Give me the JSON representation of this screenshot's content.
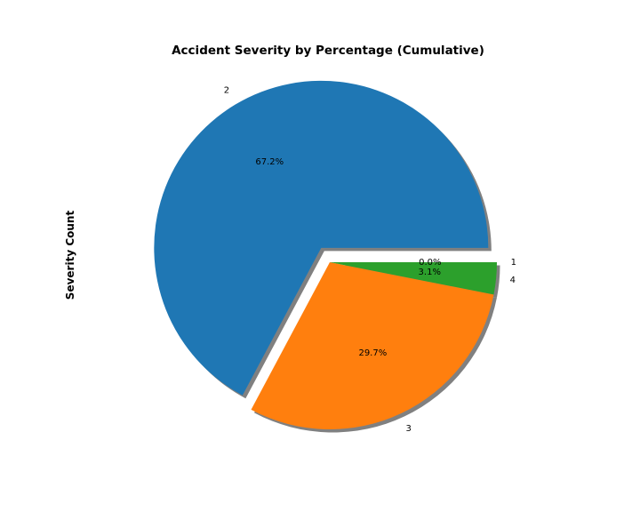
{
  "chart_data": {
    "type": "pie",
    "title": "Accident Severity by Percentage (Cumulative)",
    "ylabel": "Severity Count",
    "slices": [
      {
        "label": "1",
        "percent": 0.0,
        "pct_label": "0.0%",
        "color": "#d62728",
        "exploded": false
      },
      {
        "label": "2",
        "percent": 67.2,
        "pct_label": "67.2%",
        "color": "#1f77b4",
        "exploded": true
      },
      {
        "label": "3",
        "percent": 29.7,
        "pct_label": "29.7%",
        "color": "#ff7f0e",
        "exploded": false
      },
      {
        "label": "4",
        "percent": 3.1,
        "pct_label": "3.1%",
        "color": "#2ca02c",
        "exploded": false
      }
    ],
    "start_angle_deg": 0,
    "direction": "counterclockwise",
    "shadow": true
  }
}
